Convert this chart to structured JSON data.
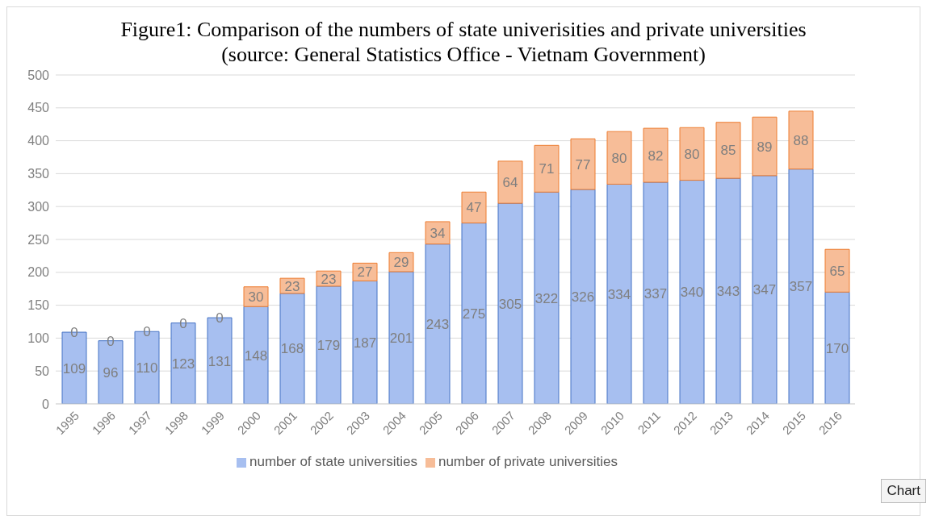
{
  "chart_data": {
    "type": "bar",
    "title": "Figure1: Comparison of the numbers of state univerisities and private universities (source: General Statistics Office - Vietnam Government)",
    "categories": [
      "1995",
      "1996",
      "1997",
      "1998",
      "1999",
      "2000",
      "2001",
      "2002",
      "2003",
      "2004",
      "2005",
      "2006",
      "2007",
      "2008",
      "2009",
      "2010",
      "2011",
      "2012",
      "2013",
      "2014",
      "2015",
      "2016"
    ],
    "series": [
      {
        "name": "number of state universities",
        "color": "#a7bff0",
        "values": [
          109,
          96,
          110,
          123,
          131,
          148,
          168,
          179,
          187,
          201,
          243,
          275,
          305,
          322,
          326,
          334,
          337,
          340,
          343,
          347,
          357,
          170
        ]
      },
      {
        "name": "number of private universities",
        "color": "#f7bd98",
        "values": [
          0,
          0,
          0,
          0,
          0,
          30,
          23,
          23,
          27,
          29,
          34,
          47,
          64,
          71,
          77,
          80,
          82,
          80,
          85,
          89,
          88,
          65
        ]
      }
    ],
    "stacked": true,
    "ylim": [
      0,
      500
    ],
    "yticks": [
      0,
      50,
      100,
      150,
      200,
      250,
      300,
      350,
      400,
      450,
      500
    ],
    "grid": "y",
    "legend": "bottom",
    "data_labels": true,
    "annotations": [
      "Chart"
    ]
  }
}
